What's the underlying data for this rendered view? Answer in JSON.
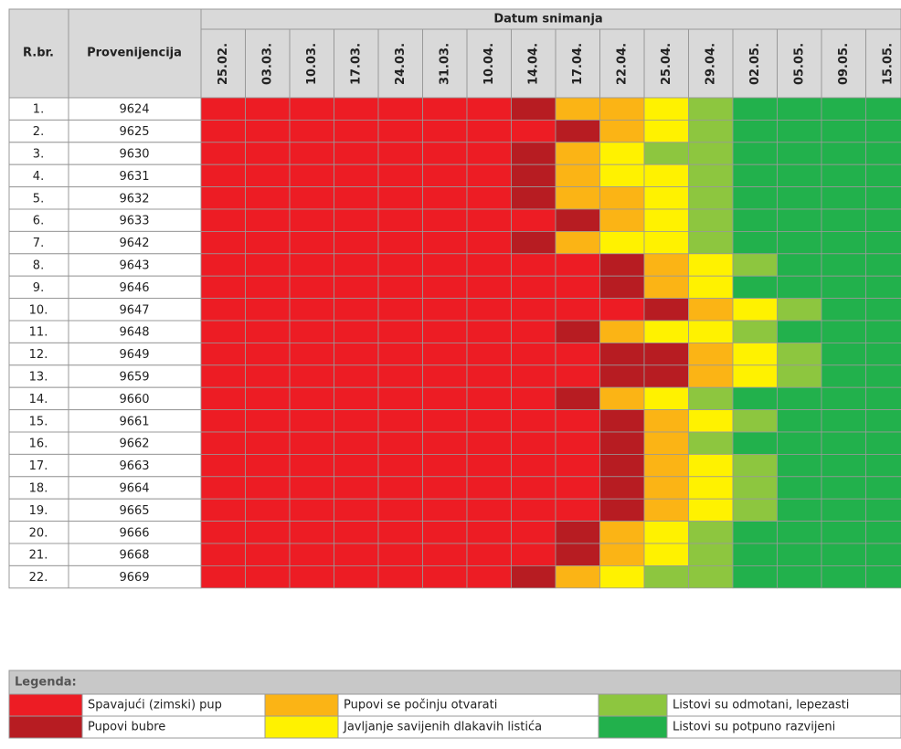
{
  "table": {
    "headers": {
      "number": "R.br.",
      "provenance": "Provenijencija",
      "dates_title": "Datum snimanja"
    },
    "dates": [
      "25.02.",
      "03.03.",
      "10.03.",
      "17.03.",
      "24.03.",
      "31.03.",
      "10.04.",
      "14.04.",
      "17.04.",
      "22.04.",
      "25.04.",
      "29.04.",
      "02.05.",
      "05.05.",
      "09.05.",
      "15.05."
    ],
    "rows": [
      {
        "number": "1.",
        "provenance": "9624",
        "stages": [
          0,
          0,
          0,
          0,
          0,
          0,
          0,
          1,
          2,
          2,
          3,
          4,
          5,
          5,
          5,
          5
        ]
      },
      {
        "number": "2.",
        "provenance": "9625",
        "stages": [
          0,
          0,
          0,
          0,
          0,
          0,
          0,
          0,
          1,
          2,
          3,
          4,
          5,
          5,
          5,
          5
        ]
      },
      {
        "number": "3.",
        "provenance": "9630",
        "stages": [
          0,
          0,
          0,
          0,
          0,
          0,
          0,
          1,
          2,
          3,
          4,
          4,
          5,
          5,
          5,
          5
        ]
      },
      {
        "number": "4.",
        "provenance": "9631",
        "stages": [
          0,
          0,
          0,
          0,
          0,
          0,
          0,
          1,
          2,
          3,
          3,
          4,
          5,
          5,
          5,
          5
        ]
      },
      {
        "number": "5.",
        "provenance": "9632",
        "stages": [
          0,
          0,
          0,
          0,
          0,
          0,
          0,
          1,
          2,
          2,
          3,
          4,
          5,
          5,
          5,
          5
        ]
      },
      {
        "number": "6.",
        "provenance": "9633",
        "stages": [
          0,
          0,
          0,
          0,
          0,
          0,
          0,
          0,
          1,
          2,
          3,
          4,
          5,
          5,
          5,
          5
        ]
      },
      {
        "number": "7.",
        "provenance": "9642",
        "stages": [
          0,
          0,
          0,
          0,
          0,
          0,
          0,
          1,
          2,
          3,
          3,
          4,
          5,
          5,
          5,
          5
        ]
      },
      {
        "number": "8.",
        "provenance": "9643",
        "stages": [
          0,
          0,
          0,
          0,
          0,
          0,
          0,
          0,
          0,
          1,
          2,
          3,
          4,
          5,
          5,
          5
        ]
      },
      {
        "number": "9.",
        "provenance": "9646",
        "stages": [
          0,
          0,
          0,
          0,
          0,
          0,
          0,
          0,
          0,
          1,
          2,
          3,
          5,
          5,
          5,
          5
        ]
      },
      {
        "number": "10.",
        "provenance": "9647",
        "stages": [
          0,
          0,
          0,
          0,
          0,
          0,
          0,
          0,
          0,
          0,
          1,
          2,
          3,
          4,
          5,
          5
        ]
      },
      {
        "number": "11.",
        "provenance": "9648",
        "stages": [
          0,
          0,
          0,
          0,
          0,
          0,
          0,
          0,
          1,
          2,
          3,
          3,
          4,
          5,
          5,
          5
        ]
      },
      {
        "number": "12.",
        "provenance": "9649",
        "stages": [
          0,
          0,
          0,
          0,
          0,
          0,
          0,
          0,
          0,
          1,
          1,
          2,
          3,
          4,
          5,
          5
        ]
      },
      {
        "number": "13.",
        "provenance": "9659",
        "stages": [
          0,
          0,
          0,
          0,
          0,
          0,
          0,
          0,
          0,
          1,
          1,
          2,
          3,
          4,
          5,
          5
        ]
      },
      {
        "number": "14.",
        "provenance": "9660",
        "stages": [
          0,
          0,
          0,
          0,
          0,
          0,
          0,
          0,
          1,
          2,
          3,
          4,
          5,
          5,
          5,
          5
        ]
      },
      {
        "number": "15.",
        "provenance": "9661",
        "stages": [
          0,
          0,
          0,
          0,
          0,
          0,
          0,
          0,
          0,
          1,
          2,
          3,
          4,
          5,
          5,
          5
        ]
      },
      {
        "number": "16.",
        "provenance": "9662",
        "stages": [
          0,
          0,
          0,
          0,
          0,
          0,
          0,
          0,
          0,
          1,
          2,
          4,
          5,
          5,
          5,
          5
        ]
      },
      {
        "number": "17.",
        "provenance": "9663",
        "stages": [
          0,
          0,
          0,
          0,
          0,
          0,
          0,
          0,
          0,
          1,
          2,
          3,
          4,
          5,
          5,
          5
        ]
      },
      {
        "number": "18.",
        "provenance": "9664",
        "stages": [
          0,
          0,
          0,
          0,
          0,
          0,
          0,
          0,
          0,
          1,
          2,
          3,
          4,
          5,
          5,
          5
        ]
      },
      {
        "number": "19.",
        "provenance": "9665",
        "stages": [
          0,
          0,
          0,
          0,
          0,
          0,
          0,
          0,
          0,
          1,
          2,
          3,
          4,
          5,
          5,
          5
        ]
      },
      {
        "number": "20.",
        "provenance": "9666",
        "stages": [
          0,
          0,
          0,
          0,
          0,
          0,
          0,
          0,
          1,
          2,
          3,
          4,
          5,
          5,
          5,
          5
        ]
      },
      {
        "number": "21.",
        "provenance": "9668",
        "stages": [
          0,
          0,
          0,
          0,
          0,
          0,
          0,
          0,
          1,
          2,
          3,
          4,
          5,
          5,
          5,
          5
        ]
      },
      {
        "number": "22.",
        "provenance": "9669",
        "stages": [
          0,
          0,
          0,
          0,
          0,
          0,
          0,
          1,
          2,
          3,
          4,
          4,
          5,
          5,
          5,
          5
        ]
      }
    ]
  },
  "legend": {
    "title": "Legenda:",
    "items": [
      {
        "label": "Spavajući (zimski) pup",
        "color": "#ed1c24"
      },
      {
        "label": "Pupovi bubre",
        "color": "#b71c22"
      },
      {
        "label": "Pupovi se počinju otvarati",
        "color": "#fbb415"
      },
      {
        "label": "Javljanje savijenih dlakavih listića",
        "color": "#fff200"
      },
      {
        "label": "Listovi su odmotani, lepezasti",
        "color": "#8dc63f"
      },
      {
        "label": "Listovi su potpuno razvijeni",
        "color": "#22b14c"
      }
    ]
  }
}
